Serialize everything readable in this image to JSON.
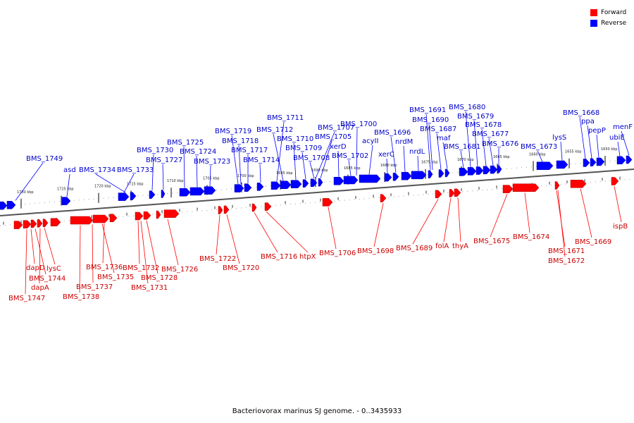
{
  "legend": {
    "forward": {
      "label": "Forward",
      "color": "#ff0000"
    },
    "reverse": {
      "label": "Reverse",
      "color": "#0000ff"
    }
  },
  "caption": "Bacteriovorax marinus SJ genome. - 0..3435933",
  "scale_labels": [
    "1730 kbp",
    "1725 kbp",
    "1720 kbp",
    "1715 kbp",
    "1710 kbp",
    "1705 kbp",
    "1700 kbp",
    "1695 kbp",
    "1690 kbp",
    "1685 kbp",
    "1680 kbp",
    "1675 kbp",
    "1670 kbp",
    "1665 kbp",
    "1660 kbp",
    "1655 kbp",
    "1650 kbp"
  ],
  "reverse_genes": [
    "BMS_1749",
    "asd",
    "BMS_1734",
    "BMS_1733",
    "BMS_1730",
    "BMS_1727",
    "BMS_1725",
    "BMS_1724",
    "BMS_1723",
    "BMS_1719",
    "BMS_1718",
    "BMS_1717",
    "BMS_1714",
    "BMS_1711",
    "BMS_1712",
    "BMS_1710",
    "BMS_1709",
    "BMS_1708",
    "BMS_1707",
    "BMS_1705",
    "xerD",
    "BMS_1702",
    "BMS_1700",
    "acyII",
    "xerC",
    "BMS_1696",
    "nrdM",
    "nrdL",
    "BMS_1691",
    "BMS_1690",
    "BMS_1687",
    "maf",
    "BMS_1681",
    "BMS_1680",
    "BMS_1679",
    "BMS_1678",
    "BMS_1677",
    "BMS_1676",
    "BMS_1673",
    "lysS",
    "BMS_1668",
    "ppa",
    "pepP",
    "ubiE",
    "menF"
  ],
  "forward_genes": [
    "dapD",
    "BMS_1744",
    "dapA",
    "lysC",
    "BMS_1747",
    "BMS_1736",
    "BMS_1737",
    "BMS_1735",
    "BMS_1738",
    "BMS_1732",
    "BMS_1728",
    "BMS_1731",
    "BMS_1726",
    "BMS_1722",
    "BMS_1720",
    "BMS_1716",
    "htpX",
    "BMS_1706",
    "BMS_1698",
    "BMS_1689",
    "folA",
    "thyA",
    "BMS_1675",
    "BMS_1674",
    "BMS_1671",
    "BMS_1672",
    "BMS_1669",
    "ispB"
  ]
}
